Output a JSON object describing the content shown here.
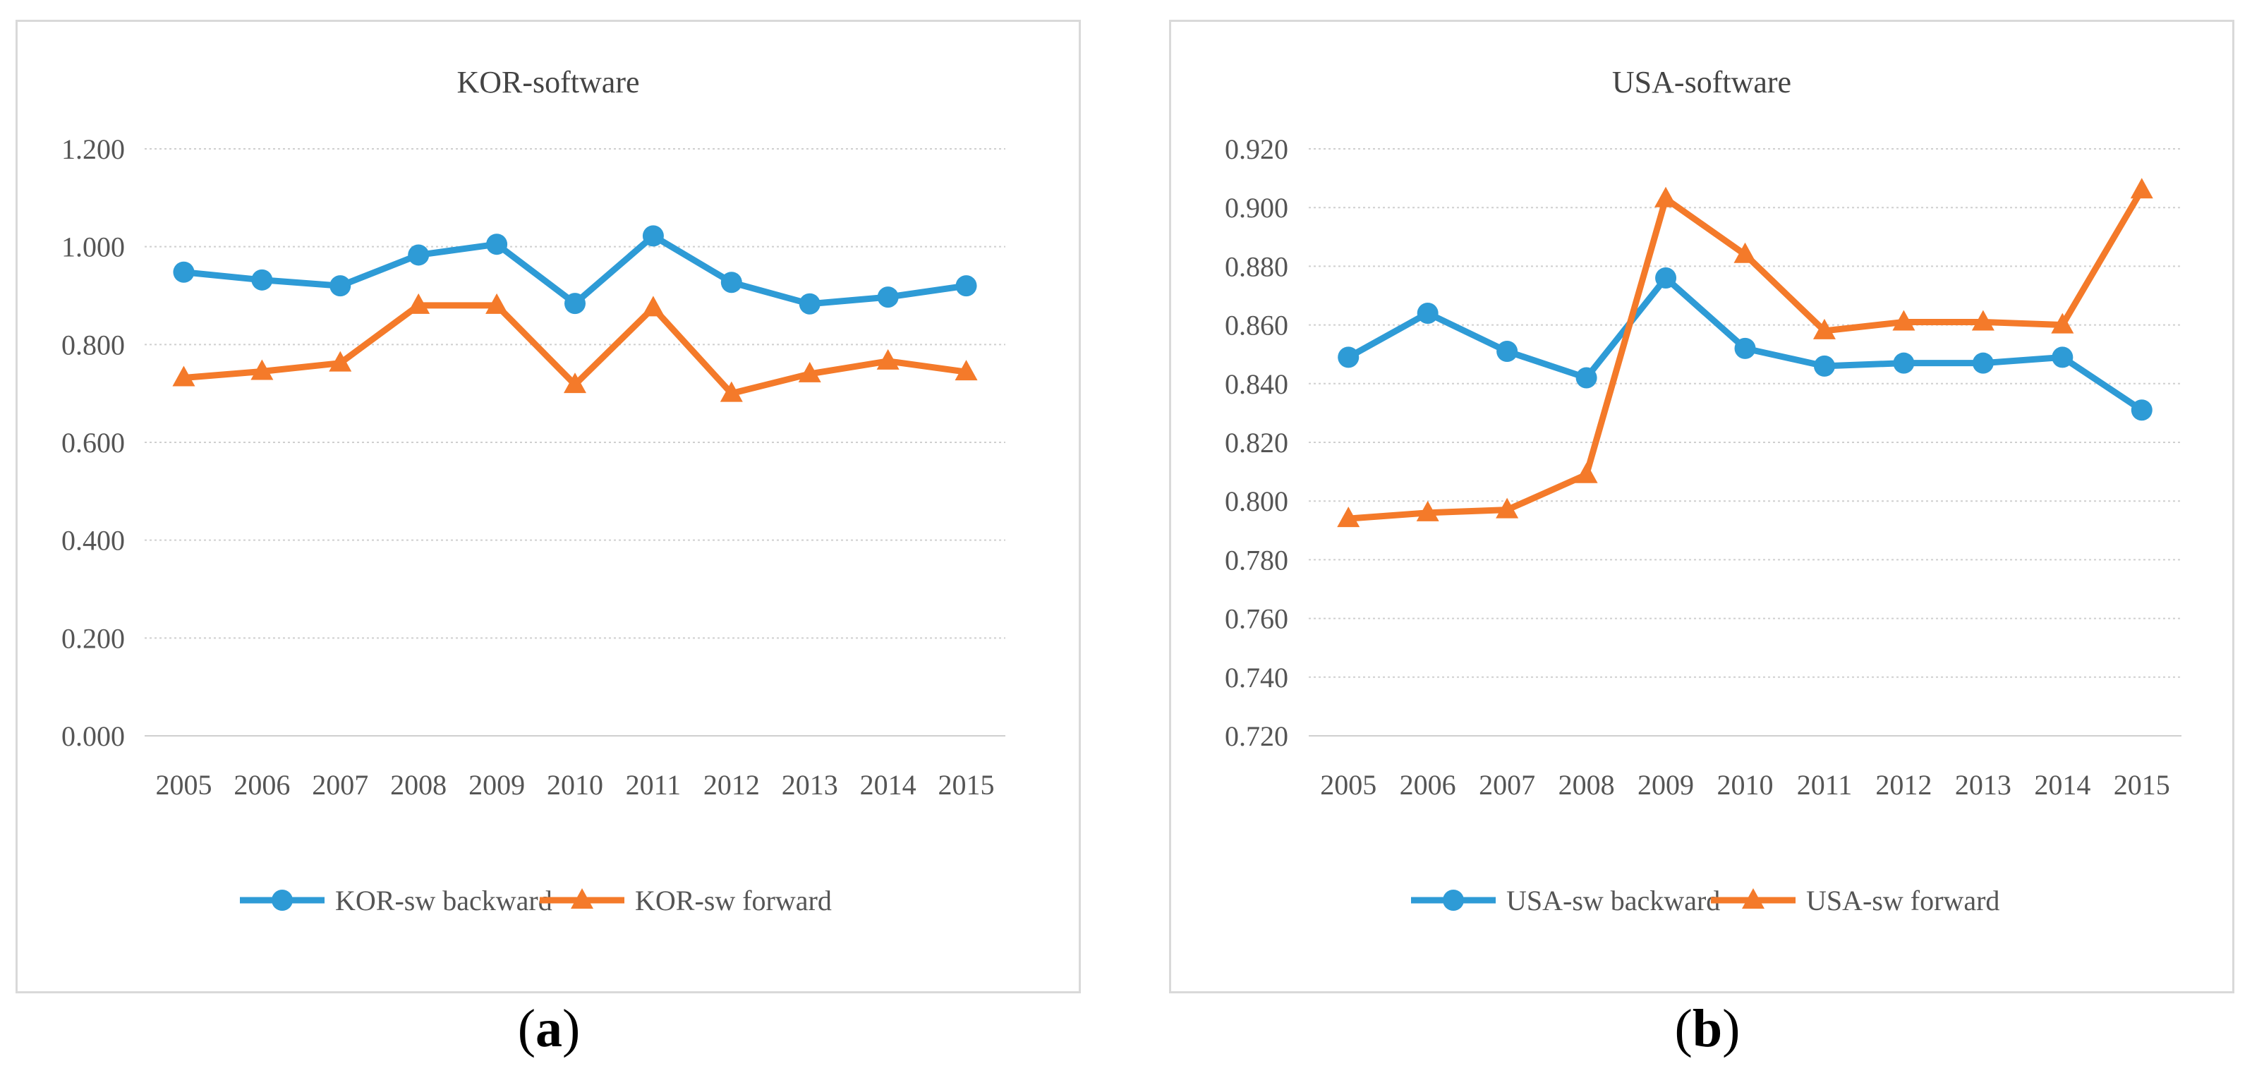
{
  "chart_data": [
    {
      "type": "line",
      "title": "KOR-software",
      "caption_letter": "a",
      "categories": [
        "2005",
        "2006",
        "2007",
        "2008",
        "2009",
        "2010",
        "2011",
        "2012",
        "2013",
        "2014",
        "2015"
      ],
      "y_ticks": [
        "0.000",
        "0.200",
        "0.400",
        "0.600",
        "0.800",
        "1.000",
        "1.200"
      ],
      "ylim": [
        0,
        1.2
      ],
      "grid": true,
      "legend_position": "bottom",
      "series": [
        {
          "name": "KOR-sw backward",
          "marker": "circle",
          "color": "#2E9BD6",
          "values": [
            0.948,
            0.932,
            0.92,
            0.983,
            1.005,
            0.884,
            1.022,
            0.927,
            0.883,
            0.897,
            0.92
          ]
        },
        {
          "name": "KOR-sw forward",
          "marker": "triangle",
          "color": "#F47A2A",
          "values": [
            0.732,
            0.745,
            0.762,
            0.88,
            0.88,
            0.718,
            0.875,
            0.7,
            0.74,
            0.766,
            0.744
          ]
        }
      ]
    },
    {
      "type": "line",
      "title": "USA-software",
      "caption_letter": "b",
      "categories": [
        "2005",
        "2006",
        "2007",
        "2008",
        "2009",
        "2010",
        "2011",
        "2012",
        "2013",
        "2014",
        "2015"
      ],
      "y_ticks": [
        "0.720",
        "0.740",
        "0.760",
        "0.780",
        "0.800",
        "0.820",
        "0.840",
        "0.860",
        "0.880",
        "0.900",
        "0.920"
      ],
      "ylim": [
        0.72,
        0.92
      ],
      "grid": true,
      "legend_position": "bottom",
      "series": [
        {
          "name": "USA-sw backward",
          "marker": "circle",
          "color": "#2E9BD6",
          "values": [
            0.849,
            0.864,
            0.851,
            0.842,
            0.876,
            0.852,
            0.846,
            0.847,
            0.847,
            0.849,
            0.831
          ]
        },
        {
          "name": "USA-sw forward",
          "marker": "triangle",
          "color": "#F47A2A",
          "values": [
            0.794,
            0.796,
            0.797,
            0.809,
            0.903,
            0.884,
            0.858,
            0.861,
            0.861,
            0.86,
            0.906
          ]
        }
      ]
    }
  ]
}
